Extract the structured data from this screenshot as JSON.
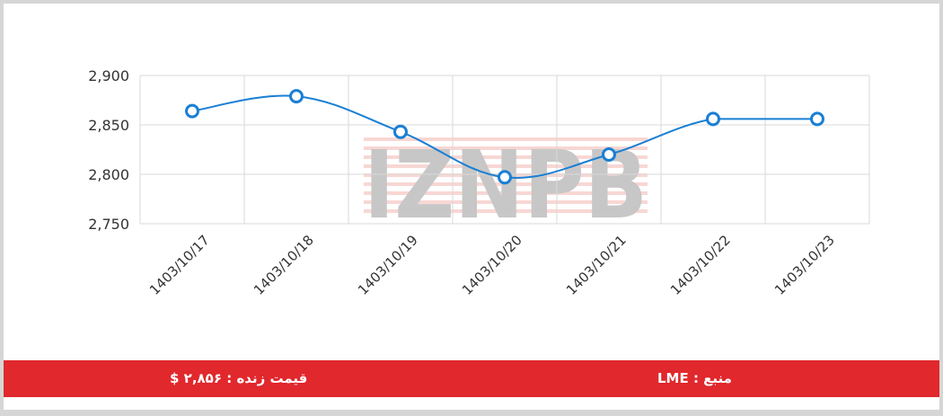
{
  "chart_data": {
    "type": "line",
    "x": [
      "1403/10/17",
      "1403/10/18",
      "1403/10/19",
      "1403/10/20",
      "1403/10/21",
      "1403/10/22",
      "1403/10/23"
    ],
    "series": [
      {
        "values": [
          2864,
          2879,
          2843,
          2797,
          2820,
          2856,
          2856
        ]
      }
    ],
    "ylim": [
      2750,
      2900
    ],
    "yticks": [
      "2,750",
      "2,800",
      "2,850",
      "2,900"
    ],
    "grid": true,
    "colors": {
      "line": "#1a7fd4",
      "point_fill": "#ffffff",
      "grid": "#d9d9d9"
    }
  },
  "watermark": {
    "text": "IZNPB"
  },
  "footer": {
    "price_label": "قیمت زنده : ۲,۸۵۶ $",
    "source_label": "منبع : LME",
    "background": "#e0282d"
  }
}
